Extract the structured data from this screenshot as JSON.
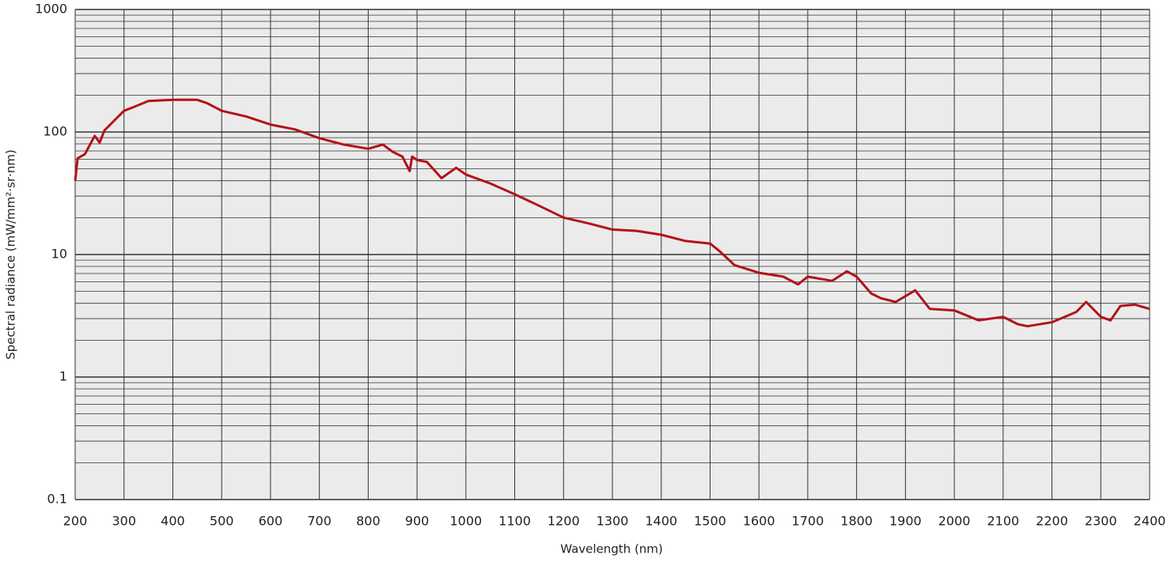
{
  "chart_data": {
    "type": "line",
    "x_label": "Wavelength (nm)",
    "y_label": "Spectral radiance (mW/mm²·sr·nm)",
    "log_y": true,
    "grid": true,
    "minor_grid": true,
    "background": "#ebebeb",
    "grid_color": "#333333",
    "xlim": [
      200,
      2400
    ],
    "xticks": [
      200,
      300,
      400,
      500,
      600,
      700,
      800,
      900,
      1000,
      1100,
      1200,
      1300,
      1400,
      1500,
      1600,
      1700,
      1800,
      1900,
      2000,
      2100,
      2200,
      2300,
      2400
    ],
    "ylim": [
      0.1,
      1000
    ],
    "yticks": [
      0.1,
      1,
      10,
      100,
      1000
    ],
    "x": [
      200,
      205,
      220,
      240,
      250,
      260,
      300,
      320,
      350,
      400,
      450,
      470,
      500,
      550,
      600,
      650,
      700,
      750,
      800,
      830,
      850,
      870,
      885,
      890,
      900,
      920,
      950,
      980,
      1000,
      1050,
      1100,
      1150,
      1200,
      1250,
      1300,
      1350,
      1400,
      1450,
      1500,
      1520,
      1550,
      1600,
      1650,
      1680,
      1700,
      1750,
      1780,
      1800,
      1830,
      1850,
      1880,
      1920,
      1950,
      2000,
      2050,
      2100,
      2130,
      2150,
      2200,
      2250,
      2270,
      2300,
      2320,
      2340,
      2370,
      2400
    ],
    "series": [
      {
        "name": "Spectral radiance",
        "color": "#b3121a",
        "values": [
          40,
          61,
          66,
          93,
          82,
          103,
          149,
          160,
          179,
          183,
          183,
          172,
          149,
          134,
          115,
          105,
          89,
          79,
          73,
          79,
          69,
          63,
          48,
          63,
          59,
          57,
          42,
          51,
          45,
          38,
          31,
          25,
          20,
          18,
          16,
          15.6,
          14.5,
          12.9,
          12.3,
          10.6,
          8.2,
          7.1,
          6.6,
          5.7,
          6.6,
          6.1,
          7.3,
          6.6,
          4.8,
          4.4,
          4.1,
          5.1,
          3.6,
          3.5,
          2.9,
          3.1,
          2.7,
          2.6,
          2.8,
          3.4,
          4.1,
          3.1,
          2.9,
          3.8,
          3.9,
          3.6
        ]
      }
    ]
  }
}
